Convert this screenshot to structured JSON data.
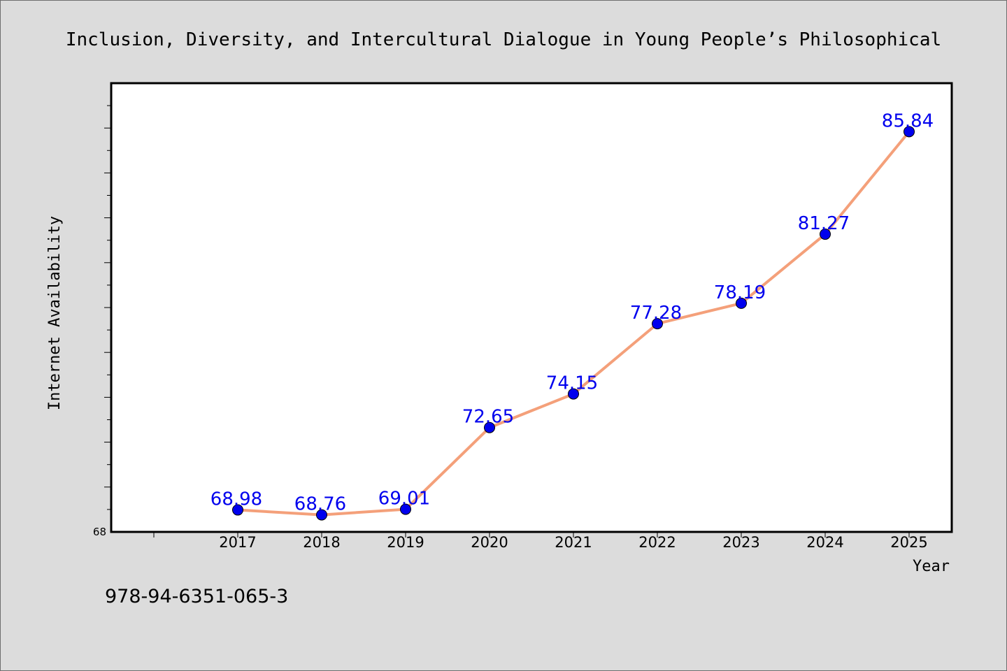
{
  "chart_data": {
    "type": "line",
    "title": "Inclusion, Diversity, and Intercultural Dialogue in Young People’s Philosophical",
    "xlabel": "Year",
    "ylabel": "Internet Availability",
    "categories": [
      "2017",
      "2018",
      "2019",
      "2020",
      "2021",
      "2022",
      "2023",
      "2024",
      "2025"
    ],
    "series": [
      {
        "values": [
          68.98,
          68.76,
          69.01,
          72.65,
          74.15,
          77.28,
          78.19,
          81.27,
          85.84
        ],
        "data_labels": [
          "68.98",
          "68.76",
          "69.01",
          "72.65",
          "74.15",
          "77.28",
          "78.19",
          "81.27",
          "85.84"
        ]
      }
    ],
    "y_tick_labels": [
      "68"
    ],
    "ylim": [
      68,
      88
    ],
    "grid": false,
    "legend": "none",
    "colors": {
      "line": "#f4a07a",
      "marker": "#0000ee",
      "data_label": "#0000ee",
      "background": "#dcdcdc",
      "plot_background": "#ffffff"
    }
  },
  "footer": {
    "isbn": "978-94-6351-065-3"
  }
}
